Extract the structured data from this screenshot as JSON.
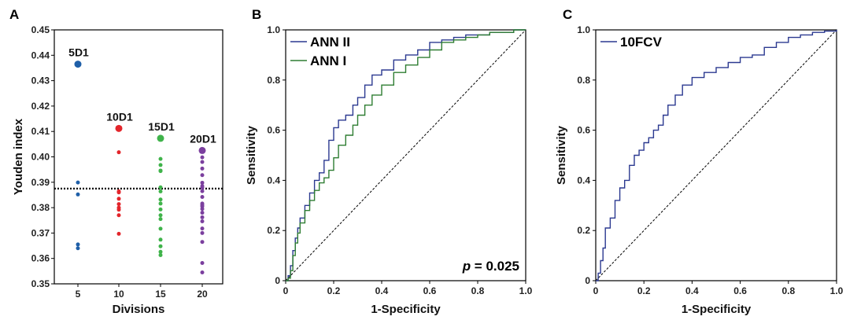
{
  "chart_data": [
    {
      "panel_label": "A",
      "type": "scatter",
      "xlabel": "Divisions",
      "ylabel": "Youden index",
      "x_ticks": [
        5,
        10,
        15,
        20
      ],
      "y_ticks": [
        "0.35",
        "0.36",
        "0.37",
        "0.38",
        "0.39",
        "0.40",
        "0.41",
        "0.42",
        "0.43",
        "0.44",
        "0.45"
      ],
      "ylim": [
        0.35,
        0.45
      ],
      "reference_line": 0.3875,
      "series": [
        {
          "color": "#1f5fa8",
          "x": 5,
          "label": "5D1",
          "highlight": 0.4365,
          "values": [
            0.3899,
            0.3852,
            0.3655,
            0.364
          ]
        },
        {
          "color": "#e3252b",
          "x": 10,
          "label": "10D1",
          "highlight": 0.4112,
          "values": [
            0.4018,
            0.3864,
            0.386,
            0.3835,
            0.3814,
            0.38,
            0.3792,
            0.377,
            0.3697
          ]
        },
        {
          "color": "#3fb34a",
          "x": 15,
          "label": "15D1",
          "highlight": 0.4073,
          "values": [
            0.3992,
            0.3968,
            0.3946,
            0.3944,
            0.388,
            0.3864,
            0.3832,
            0.3816,
            0.3793,
            0.377,
            0.3755,
            0.3717,
            0.3674,
            0.3648,
            0.3626,
            0.3613
          ]
        },
        {
          "color": "#7b3f9e",
          "x": 20,
          "label": "20D1",
          "highlight": 0.4025,
          "values": [
            0.3998,
            0.398,
            0.3954,
            0.3928,
            0.3898,
            0.3885,
            0.3879,
            0.3865,
            0.3842,
            0.3816,
            0.381,
            0.3805,
            0.3795,
            0.378,
            0.3762,
            0.3746,
            0.3718,
            0.37,
            0.3665,
            0.3582,
            0.3545
          ]
        }
      ]
    },
    {
      "panel_label": "B",
      "type": "line",
      "xlabel": "1-Specificity",
      "ylabel": "Sensitivity",
      "x_ticks": [
        "0",
        "0.2",
        "0.4",
        "0.6",
        "0.8",
        "1.0"
      ],
      "y_ticks": [
        "0",
        "0.2",
        "0.4",
        "0.6",
        "0.8",
        "1.0"
      ],
      "xlim": [
        0,
        1
      ],
      "ylim": [
        0,
        1
      ],
      "annotation": {
        "italic": "p",
        "text": " = 0.025"
      },
      "series": [
        {
          "name": "ANN II",
          "color": "#2b3990",
          "x": [
            0,
            0.01,
            0.02,
            0.03,
            0.04,
            0.05,
            0.06,
            0.08,
            0.1,
            0.12,
            0.14,
            0.16,
            0.18,
            0.2,
            0.22,
            0.25,
            0.28,
            0.3,
            0.33,
            0.36,
            0.4,
            0.45,
            0.5,
            0.55,
            0.6,
            0.65,
            0.7,
            0.75,
            0.8,
            0.85,
            0.9,
            0.95,
            1.0
          ],
          "y": [
            0,
            0.02,
            0.06,
            0.12,
            0.17,
            0.21,
            0.25,
            0.3,
            0.35,
            0.4,
            0.43,
            0.48,
            0.56,
            0.61,
            0.64,
            0.66,
            0.7,
            0.73,
            0.78,
            0.82,
            0.84,
            0.88,
            0.9,
            0.92,
            0.95,
            0.96,
            0.97,
            0.98,
            0.98,
            0.99,
            0.99,
            1.0,
            1.0
          ]
        },
        {
          "name": "ANN I",
          "color": "#2e7d32",
          "x": [
            0,
            0.01,
            0.02,
            0.03,
            0.04,
            0.05,
            0.06,
            0.08,
            0.1,
            0.12,
            0.14,
            0.16,
            0.18,
            0.2,
            0.22,
            0.25,
            0.28,
            0.3,
            0.33,
            0.36,
            0.4,
            0.45,
            0.5,
            0.55,
            0.6,
            0.65,
            0.7,
            0.75,
            0.8,
            0.85,
            0.9,
            0.95,
            1.0
          ],
          "y": [
            0,
            0.01,
            0.04,
            0.1,
            0.15,
            0.19,
            0.23,
            0.28,
            0.32,
            0.36,
            0.39,
            0.41,
            0.44,
            0.49,
            0.54,
            0.58,
            0.62,
            0.66,
            0.7,
            0.74,
            0.78,
            0.83,
            0.86,
            0.89,
            0.92,
            0.95,
            0.96,
            0.97,
            0.98,
            0.99,
            0.99,
            1.0,
            1.0
          ]
        }
      ]
    },
    {
      "panel_label": "C",
      "type": "line",
      "xlabel": "1-Specificity",
      "ylabel": "Sensitivity",
      "x_ticks": [
        "0",
        "0.2",
        "0.4",
        "0.6",
        "0.8",
        "1.0"
      ],
      "y_ticks": [
        "0",
        "0.2",
        "0.4",
        "0.6",
        "0.8",
        "1.0"
      ],
      "xlim": [
        0,
        1
      ],
      "ylim": [
        0,
        1
      ],
      "series": [
        {
          "name": "10FCV",
          "color": "#2b3990",
          "x": [
            0,
            0.01,
            0.02,
            0.03,
            0.04,
            0.06,
            0.08,
            0.1,
            0.12,
            0.14,
            0.16,
            0.18,
            0.2,
            0.22,
            0.24,
            0.26,
            0.28,
            0.3,
            0.33,
            0.36,
            0.4,
            0.45,
            0.5,
            0.55,
            0.6,
            0.65,
            0.7,
            0.75,
            0.8,
            0.85,
            0.9,
            0.95,
            1.0
          ],
          "y": [
            0,
            0.03,
            0.08,
            0.13,
            0.21,
            0.25,
            0.32,
            0.37,
            0.4,
            0.46,
            0.5,
            0.52,
            0.55,
            0.57,
            0.6,
            0.62,
            0.66,
            0.7,
            0.74,
            0.78,
            0.81,
            0.83,
            0.85,
            0.87,
            0.89,
            0.9,
            0.93,
            0.95,
            0.97,
            0.98,
            0.99,
            0.995,
            1.0
          ]
        }
      ]
    }
  ]
}
